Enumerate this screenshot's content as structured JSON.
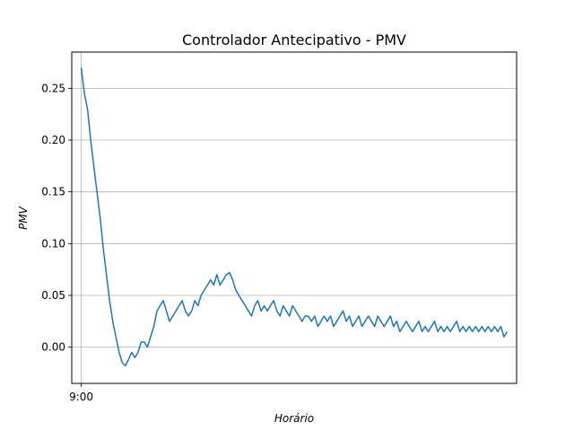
{
  "chart_data": {
    "type": "line",
    "title": "Controlador Antecipativo - PMV",
    "xlabel": "Horário",
    "ylabel": "PMV",
    "x_ticks": [
      {
        "x": 0,
        "label": "9:00"
      }
    ],
    "xlim": [
      -1.5,
      69
    ],
    "ylim": [
      -0.035,
      0.285
    ],
    "y_ticks": [
      0.0,
      0.05,
      0.1,
      0.15,
      0.2,
      0.25
    ],
    "y_tick_labels": [
      "0.00",
      "0.05",
      "0.10",
      "0.15",
      "0.20",
      "0.25"
    ],
    "grid": "horizontal",
    "colors": {
      "line": "#1f77b4",
      "grid": "#b0b0b0"
    },
    "series": [
      {
        "x": [
          0,
          0.5,
          1,
          1.5,
          2,
          2.5,
          3,
          3.5,
          4,
          4.5,
          5,
          5.5,
          6,
          6.5,
          7,
          7.5,
          8,
          8.5,
          9,
          9.5,
          10,
          10.5,
          11,
          11.5,
          12,
          12.5,
          13,
          13.5,
          14,
          14.5,
          15,
          15.5,
          16,
          16.5,
          17,
          17.5,
          18,
          18.5,
          19,
          19.5,
          20,
          20.5,
          21,
          21.5,
          22,
          22.5,
          23,
          23.5,
          24,
          24.5,
          25,
          25.5,
          26,
          26.5,
          27,
          27.5,
          28,
          28.5,
          29,
          29.5,
          30,
          30.5,
          31,
          31.5,
          32,
          32.5,
          33,
          33.5,
          34,
          34.5,
          35,
          35.5,
          36,
          36.5,
          37,
          37.5,
          38,
          38.5,
          39,
          39.5,
          40,
          40.5,
          41,
          41.5,
          42,
          42.5,
          43,
          43.5,
          44,
          44.5,
          45,
          45.5,
          46,
          46.5,
          47,
          47.5,
          48,
          48.5,
          49,
          49.5,
          50,
          50.5,
          51,
          51.5,
          52,
          52.5,
          53,
          53.5,
          54,
          54.5,
          55,
          55.5,
          56,
          56.5,
          57,
          57.5,
          58,
          58.5,
          59,
          59.5,
          60,
          60.5,
          61,
          61.5,
          62,
          62.5,
          63,
          63.5,
          64,
          64.5,
          65,
          65.5,
          66,
          66.5,
          67,
          67.5
        ],
        "y": [
          0.27,
          0.245,
          0.23,
          0.2,
          0.175,
          0.15,
          0.125,
          0.095,
          0.07,
          0.045,
          0.025,
          0.01,
          -0.005,
          -0.015,
          -0.018,
          -0.012,
          -0.005,
          -0.01,
          -0.005,
          0.005,
          0.005,
          0.0,
          0.01,
          0.02,
          0.035,
          0.04,
          0.045,
          0.035,
          0.025,
          0.03,
          0.035,
          0.04,
          0.045,
          0.035,
          0.03,
          0.035,
          0.045,
          0.04,
          0.05,
          0.055,
          0.06,
          0.065,
          0.06,
          0.07,
          0.06,
          0.065,
          0.07,
          0.072,
          0.065,
          0.055,
          0.05,
          0.045,
          0.04,
          0.035,
          0.03,
          0.04,
          0.045,
          0.035,
          0.04,
          0.035,
          0.04,
          0.045,
          0.035,
          0.03,
          0.04,
          0.035,
          0.03,
          0.04,
          0.035,
          0.03,
          0.025,
          0.03,
          0.03,
          0.025,
          0.03,
          0.02,
          0.025,
          0.03,
          0.025,
          0.03,
          0.02,
          0.025,
          0.03,
          0.035,
          0.025,
          0.03,
          0.02,
          0.025,
          0.03,
          0.02,
          0.025,
          0.03,
          0.025,
          0.02,
          0.03,
          0.025,
          0.02,
          0.025,
          0.03,
          0.02,
          0.025,
          0.015,
          0.02,
          0.025,
          0.02,
          0.015,
          0.02,
          0.025,
          0.015,
          0.02,
          0.015,
          0.02,
          0.025,
          0.015,
          0.02,
          0.015,
          0.02,
          0.015,
          0.02,
          0.025,
          0.015,
          0.02,
          0.015,
          0.02,
          0.015,
          0.02,
          0.015,
          0.02,
          0.015,
          0.02,
          0.015,
          0.02,
          0.015,
          0.02,
          0.01,
          0.015
        ]
      }
    ]
  }
}
